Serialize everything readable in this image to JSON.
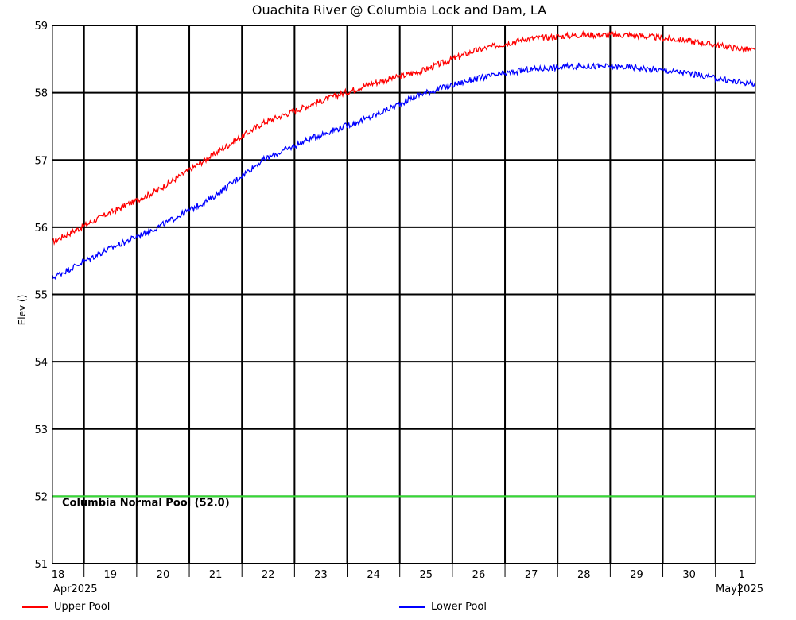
{
  "chart_data": {
    "type": "line",
    "title": "Ouachita River @ Columbia Lock and Dam, LA",
    "ylabel": "Elev ()",
    "ylim": [
      51,
      59
    ],
    "yticks": [
      51,
      52,
      53,
      54,
      55,
      56,
      57,
      58,
      59
    ],
    "xlim": [
      "2025-04-18",
      "2025-05-02"
    ],
    "x_tick_labels": [
      "18",
      "19",
      "20",
      "21",
      "22",
      "23",
      "24",
      "25",
      "26",
      "27",
      "28",
      "29",
      "30",
      "1"
    ],
    "x_start_label": "Apr2025",
    "x_end_label": "May2025",
    "grid": true,
    "legend_position": "bottom",
    "series": [
      {
        "name": "Upper Pool",
        "color": "#ff0000",
        "x": [
          "2025-04-18",
          "2025-04-19",
          "2025-04-20",
          "2025-04-21",
          "2025-04-22",
          "2025-04-23",
          "2025-04-24",
          "2025-04-25",
          "2025-04-26",
          "2025-04-27",
          "2025-04-28",
          "2025-04-29",
          "2025-04-30",
          "2025-05-01",
          "2025-05-02"
        ],
        "values": [
          55.78,
          56.18,
          56.55,
          57.05,
          57.55,
          57.85,
          58.12,
          58.32,
          58.62,
          58.8,
          58.86,
          58.86,
          58.78,
          58.66,
          58.56
        ]
      },
      {
        "name": "Lower Pool",
        "color": "#0000ff",
        "x": [
          "2025-04-18",
          "2025-04-19",
          "2025-04-20",
          "2025-04-21",
          "2025-04-22",
          "2025-04-23",
          "2025-04-24",
          "2025-04-25",
          "2025-04-26",
          "2025-04-27",
          "2025-04-28",
          "2025-04-29",
          "2025-04-30",
          "2025-05-01",
          "2025-05-02"
        ],
        "values": [
          55.25,
          55.65,
          56.0,
          56.42,
          57.0,
          57.35,
          57.62,
          57.98,
          58.2,
          58.34,
          58.4,
          58.38,
          58.3,
          58.16,
          58.1
        ]
      }
    ],
    "reference_lines": [
      {
        "value": 52.0,
        "label": "Columbia Normal Pool (52.0)",
        "color": "#33dd33"
      }
    ]
  }
}
